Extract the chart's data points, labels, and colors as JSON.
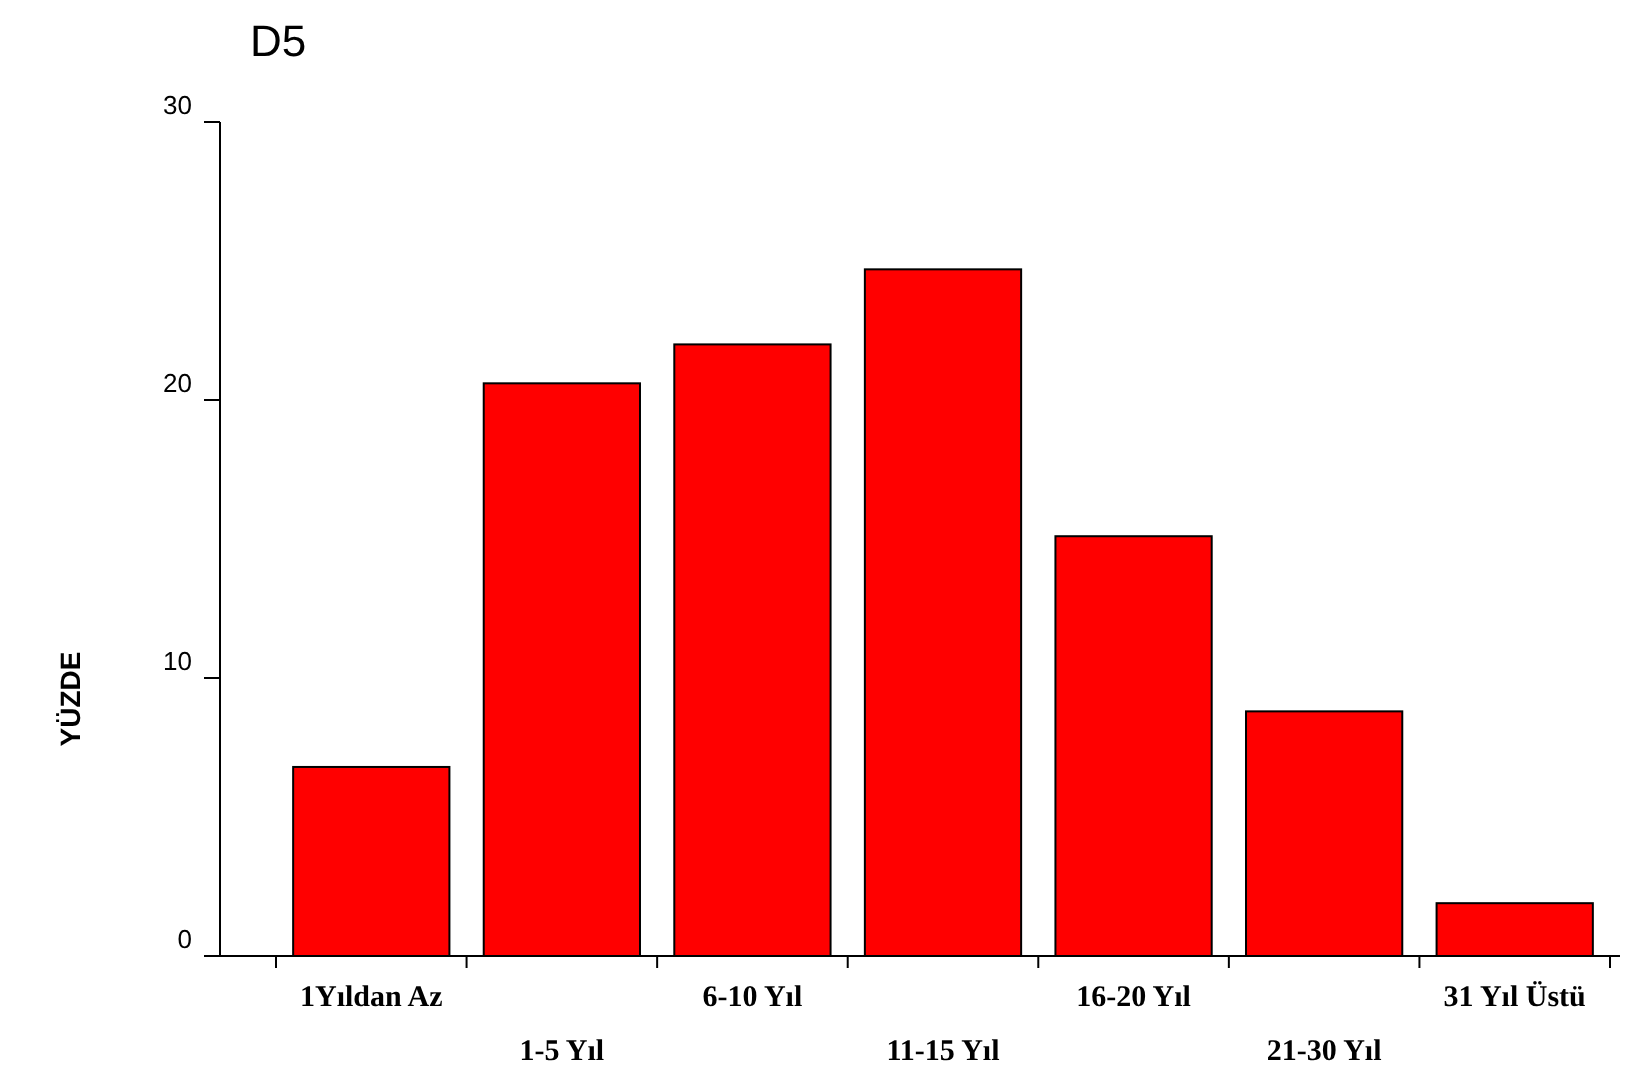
{
  "chart_data": {
    "type": "bar",
    "title": "D5",
    "ylabel": "YÜZDE",
    "categories": [
      "1Yıldan Az",
      "1-5 Yıl",
      "6-10 Yıl",
      "11-15 Yıl",
      "16-20 Yıl",
      "21-30 Yıl",
      "31 Yıl Üstü"
    ],
    "values": [
      6.8,
      20.6,
      22.0,
      24.7,
      15.1,
      8.8,
      1.9
    ],
    "color": "#ff0000",
    "ylim": [
      0,
      30
    ],
    "yticks": [
      0,
      10,
      20,
      30
    ],
    "grid": false
  }
}
